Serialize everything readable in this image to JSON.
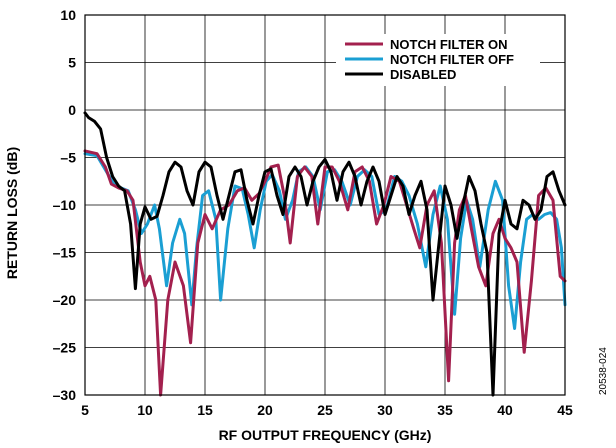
{
  "chart_data": {
    "type": "line",
    "title": "",
    "xlabel": "RF OUTPUT FREQUENCY (GHz)",
    "ylabel": "RETURN LOSS (dB)",
    "xlim": [
      5,
      45
    ],
    "ylim": [
      -30,
      10
    ],
    "x_ticks": [
      5,
      10,
      15,
      20,
      25,
      30,
      35,
      40,
      45
    ],
    "y_ticks": [
      10,
      5,
      0,
      -5,
      -10,
      -15,
      -20,
      -25,
      -30
    ],
    "grid": true,
    "legend_position": "top-right",
    "series": [
      {
        "name": "NOTCH FILTER ON",
        "color": "#a3204e",
        "x": [
          5,
          6,
          6.7,
          7.2,
          7.8,
          8.5,
          9.0,
          9.6,
          10.0,
          10.4,
          10.9,
          11.3,
          11.9,
          12.5,
          13.2,
          13.8,
          14.4,
          15.0,
          15.6,
          16.3,
          17.0,
          17.7,
          18.3,
          18.9,
          19.5,
          20.0,
          20.5,
          21.1,
          21.6,
          22.1,
          22.7,
          23.3,
          23.9,
          24.4,
          25.0,
          25.6,
          26.2,
          26.9,
          27.5,
          28.1,
          28.7,
          29.3,
          29.9,
          30.5,
          31.2,
          31.8,
          32.4,
          32.9,
          33.5,
          34.1,
          34.7,
          35.3,
          35.8,
          36.2,
          36.7,
          37.2,
          37.8,
          38.4,
          39.0,
          39.5,
          40.0,
          40.5,
          41.0,
          41.6,
          42.2,
          42.8,
          43.4,
          44.0,
          44.6,
          45.0
        ],
        "y": [
          -4.3,
          -4.6,
          -6.0,
          -7.8,
          -8.2,
          -8.5,
          -9.5,
          -16.0,
          -18.5,
          -17.5,
          -20.0,
          -30.0,
          -20.0,
          -16.0,
          -18.5,
          -24.5,
          -14.0,
          -11.0,
          -12.5,
          -10.5,
          -10.0,
          -8.5,
          -8.2,
          -9.5,
          -8.8,
          -7.5,
          -6.0,
          -5.8,
          -9.0,
          -14.0,
          -7.0,
          -6.0,
          -7.0,
          -12.0,
          -6.0,
          -6.0,
          -7.5,
          -10.5,
          -6.5,
          -6.0,
          -7.5,
          -12.0,
          -10.0,
          -7.0,
          -7.5,
          -10.0,
          -12.5,
          -14.5,
          -10.0,
          -8.5,
          -14.0,
          -28.5,
          -14.0,
          -10.5,
          -9.0,
          -12.5,
          -16.5,
          -18.5,
          -13.0,
          -11.5,
          -13.5,
          -14.5,
          -16.0,
          -25.5,
          -18.0,
          -9.0,
          -8.2,
          -9.5,
          -17.5,
          -18.0
        ]
      },
      {
        "name": "NOTCH FILTER OFF",
        "color": "#1a9fd3",
        "x": [
          5,
          6,
          6.8,
          7.4,
          8.0,
          8.6,
          9.2,
          9.7,
          10.2,
          10.8,
          11.2,
          11.8,
          12.3,
          12.9,
          13.3,
          13.9,
          14.3,
          14.8,
          15.3,
          15.9,
          16.3,
          16.9,
          17.5,
          18.1,
          18.6,
          19.1,
          19.6,
          20.1,
          20.6,
          21.2,
          21.7,
          22.3,
          22.8,
          23.4,
          24.0,
          24.6,
          25.2,
          25.8,
          26.4,
          27.1,
          27.7,
          28.3,
          28.9,
          29.5,
          30.1,
          30.8,
          31.4,
          32.0,
          32.7,
          33.4,
          34.0,
          34.6,
          35.2,
          35.8,
          36.3,
          36.8,
          37.3,
          37.9,
          38.6,
          39.2,
          39.8,
          40.3,
          40.8,
          41.3,
          41.8,
          42.3,
          42.8,
          43.3,
          43.8,
          44.3,
          44.7,
          45.0
        ],
        "y": [
          -4.6,
          -4.8,
          -6.5,
          -7.8,
          -8.2,
          -8.5,
          -10.5,
          -13.0,
          -12.0,
          -10.0,
          -12.5,
          -18.5,
          -14.0,
          -11.5,
          -13.0,
          -20.5,
          -14.5,
          -9.0,
          -8.5,
          -11.5,
          -20.0,
          -12.5,
          -8.0,
          -8.3,
          -11.0,
          -14.5,
          -10.5,
          -7.5,
          -6.8,
          -8.5,
          -11.5,
          -9.5,
          -6.5,
          -6.0,
          -7.0,
          -10.5,
          -6.5,
          -6.3,
          -7.5,
          -10.0,
          -7.0,
          -6.3,
          -7.0,
          -11.0,
          -10.5,
          -7.0,
          -7.5,
          -9.0,
          -12.0,
          -16.5,
          -11.0,
          -8.0,
          -11.5,
          -21.5,
          -13.5,
          -9.5,
          -11.5,
          -16.5,
          -10.5,
          -7.5,
          -9.5,
          -18.5,
          -23.0,
          -16.0,
          -11.5,
          -11.0,
          -11.5,
          -11.0,
          -10.8,
          -11.5,
          -14.5,
          -20.5
        ]
      },
      {
        "name": "DISABLED",
        "color": "#000000",
        "x": [
          5,
          5.3,
          5.8,
          6.3,
          6.8,
          7.3,
          7.8,
          8.3,
          8.8,
          9.2,
          9.6,
          10.0,
          10.5,
          11.0,
          11.5,
          12.0,
          12.5,
          13.0,
          13.5,
          14.0,
          14.5,
          15.0,
          15.5,
          16.0,
          16.5,
          17.0,
          17.5,
          18.0,
          18.5,
          19.0,
          19.5,
          20.0,
          20.5,
          21.0,
          21.5,
          22.0,
          22.5,
          23.0,
          23.5,
          24.0,
          24.5,
          25.0,
          25.5,
          26.0,
          26.5,
          27.0,
          27.5,
          28.0,
          28.5,
          29.0,
          29.5,
          30.0,
          30.5,
          31.0,
          31.5,
          32.0,
          32.5,
          33.0,
          33.5,
          34.0,
          34.5,
          35.0,
          35.5,
          36.0,
          36.5,
          37.0,
          37.5,
          38.0,
          38.5,
          39.0,
          39.5,
          40.0,
          40.5,
          41.0,
          41.5,
          42.0,
          42.5,
          43.0,
          43.5,
          44.0,
          44.5,
          45.0
        ],
        "y": [
          -0.3,
          -0.8,
          -1.2,
          -2.0,
          -5.0,
          -7.0,
          -8.0,
          -8.5,
          -12.0,
          -18.8,
          -12.0,
          -10.2,
          -11.5,
          -11.2,
          -9.0,
          -6.5,
          -5.5,
          -6.0,
          -8.5,
          -10.0,
          -6.5,
          -5.5,
          -6.0,
          -9.0,
          -11.5,
          -9.0,
          -6.5,
          -6.3,
          -9.5,
          -12.0,
          -9.0,
          -6.5,
          -6.2,
          -9.0,
          -11.0,
          -7.0,
          -6.0,
          -7.0,
          -10.0,
          -7.5,
          -6.0,
          -5.2,
          -6.5,
          -9.5,
          -6.5,
          -5.5,
          -7.0,
          -10.0,
          -7.5,
          -6.0,
          -7.5,
          -11.0,
          -9.0,
          -7.0,
          -8.0,
          -11.0,
          -9.0,
          -7.5,
          -10.5,
          -20.0,
          -14.0,
          -8.0,
          -10.0,
          -13.5,
          -10.0,
          -7.0,
          -8.5,
          -12.0,
          -15.0,
          -30.0,
          -13.0,
          -9.5,
          -12.0,
          -12.5,
          -9.5,
          -10.0,
          -11.5,
          -10.5,
          -7.0,
          -6.5,
          -8.5,
          -10.0
        ]
      }
    ]
  },
  "figure_id": "20538-024"
}
